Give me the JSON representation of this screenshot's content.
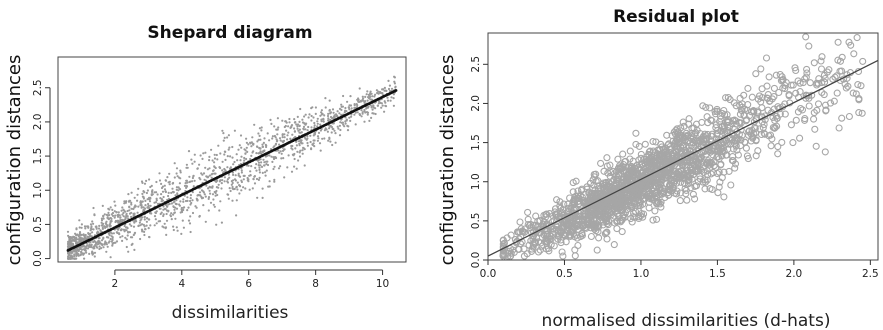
{
  "chart_data": [
    {
      "type": "scatter",
      "title": "Shepard diagram",
      "xlabel": "dissimilarities",
      "ylabel": "configuration distances",
      "xlim": [
        0.3,
        10.7
      ],
      "ylim": [
        -0.05,
        2.95
      ],
      "xticks": [
        2,
        4,
        6,
        8,
        10
      ],
      "yticks": [
        0.0,
        0.5,
        1.0,
        1.5,
        2.0,
        2.5
      ],
      "grid": false,
      "series": [
        {
          "role": "observed",
          "marker": "small grey dots",
          "color": "#9a9a9a",
          "trend": "y ≈ 0.24·x (± 0.35 spread, tightest at low and high x)",
          "x_range": [
            0.6,
            10.4
          ],
          "y_range": [
            0.0,
            2.8
          ],
          "n_points": 1800
        },
        {
          "role": "monotone fit",
          "marker": "dense black dots forming a straight line",
          "color": "#111111",
          "x": [
            0.6,
            10.4
          ],
          "y": [
            0.12,
            2.46
          ]
        }
      ]
    },
    {
      "type": "scatter",
      "title": "Residual plot",
      "xlabel": "normalised dissimilarities (d-hats)",
      "ylabel": "configuration distances",
      "xlim": [
        0.0,
        2.55
      ],
      "ylim": [
        0.0,
        2.9
      ],
      "xticks": [
        0.0,
        0.5,
        1.0,
        1.5,
        2.0,
        2.5
      ],
      "yticks": [
        0.0,
        0.5,
        1.0,
        1.5,
        2.0,
        2.5
      ],
      "grid": false,
      "series": [
        {
          "role": "observed",
          "marker": "open grey circles",
          "color": "#a6a6a6",
          "trend": "y ≈ x with vertical spread ≈ ±0.3",
          "x_range": [
            0.1,
            2.45
          ],
          "y_range": [
            0.05,
            2.85
          ],
          "n_points": 1800
        },
        {
          "role": "fit line",
          "marker": "solid line",
          "color": "#444444",
          "x": [
            0.0,
            2.55
          ],
          "y": [
            0.05,
            2.55
          ]
        }
      ]
    }
  ]
}
